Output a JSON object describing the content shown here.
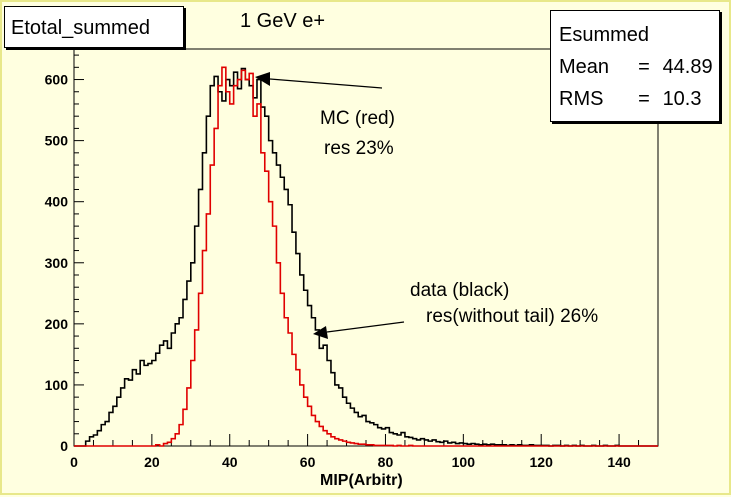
{
  "title_box": "Etotal_summed",
  "subtitle": "1 GeV e+",
  "stats": {
    "name": "Esummed",
    "rows": [
      {
        "key": "Mean",
        "eq": "=",
        "value": "44.89"
      },
      {
        "key": "RMS",
        "eq": "=",
        "value": "10.3"
      }
    ]
  },
  "annotations": {
    "mc_line1": "MC (red)",
    "mc_line2": "res 23%",
    "data_line1": "data (black)",
    "data_line2": "res(without tail) 26%"
  },
  "colors": {
    "background": "#ffffe0",
    "mc": "#e00000",
    "data": "#000000"
  },
  "chart_data": {
    "type": "histogram",
    "title": "",
    "xlabel": "MIP(Arbitr)",
    "ylabel": "",
    "xlim": [
      0,
      150
    ],
    "ylim": [
      0,
      650
    ],
    "xticks": [
      0,
      20,
      40,
      60,
      80,
      100,
      120,
      140
    ],
    "yticks": [
      0,
      100,
      200,
      300,
      400,
      500,
      600
    ],
    "grid": false,
    "bin_width": 1,
    "series": [
      {
        "name": "data (black)",
        "x": [
          0,
          1,
          2,
          3,
          4,
          5,
          6,
          7,
          8,
          9,
          10,
          11,
          12,
          13,
          14,
          15,
          16,
          17,
          18,
          19,
          20,
          21,
          22,
          23,
          24,
          25,
          26,
          27,
          28,
          29,
          30,
          31,
          32,
          33,
          34,
          35,
          36,
          37,
          38,
          39,
          40,
          41,
          42,
          43,
          44,
          45,
          46,
          47,
          48,
          49,
          50,
          51,
          52,
          53,
          54,
          55,
          56,
          57,
          58,
          59,
          60,
          61,
          62,
          63,
          64,
          65,
          66,
          67,
          68,
          69,
          70,
          71,
          72,
          73,
          74,
          75,
          76,
          77,
          78,
          79,
          80,
          81,
          82,
          83,
          84,
          85,
          86,
          87,
          88,
          89,
          90,
          91,
          92,
          93,
          94,
          95,
          96,
          97,
          98,
          99,
          100,
          101,
          102,
          103,
          104,
          105,
          106,
          107,
          108,
          109,
          110,
          111,
          112,
          113,
          114,
          115,
          116,
          117,
          118,
          119,
          120,
          121,
          122,
          123,
          124,
          125,
          126,
          127,
          128,
          129,
          130,
          131,
          132,
          133,
          134,
          135,
          136,
          137,
          138,
          139,
          140,
          141,
          142,
          143,
          144,
          145,
          146,
          147,
          148,
          149
        ],
        "values": [
          0,
          0,
          0,
          8,
          15,
          18,
          25,
          35,
          40,
          55,
          65,
          80,
          95,
          110,
          108,
          125,
          118,
          140,
          132,
          135,
          140,
          152,
          165,
          172,
          160,
          185,
          200,
          210,
          240,
          270,
          300,
          360,
          420,
          480,
          540,
          590,
          605,
          580,
          565,
          600,
          590,
          612,
          585,
          618,
          600,
          590,
          570,
          600,
          555,
          540,
          500,
          480,
          460,
          440,
          420,
          395,
          350,
          315,
          280,
          255,
          230,
          210,
          190,
          160,
          165,
          140,
          120,
          100,
          95,
          80,
          70,
          62,
          55,
          48,
          50,
          40,
          38,
          35,
          30,
          28,
          30,
          22,
          20,
          18,
          22,
          15,
          14,
          12,
          10,
          12,
          10,
          8,
          10,
          7,
          6,
          8,
          5,
          6,
          4,
          5,
          4,
          3,
          4,
          3,
          2,
          3,
          2,
          3,
          2,
          2,
          2,
          1,
          2,
          1,
          2,
          1,
          1,
          2,
          1,
          1,
          1,
          1,
          0,
          1,
          1,
          0,
          1,
          0,
          1,
          0,
          1,
          0,
          0,
          1,
          0,
          0,
          1,
          0,
          0,
          1,
          0,
          0,
          0,
          0,
          0,
          0,
          0,
          0,
          0,
          0
        ],
        "color": "#000000"
      },
      {
        "name": "MC (red)",
        "x": [
          0,
          1,
          2,
          3,
          4,
          5,
          6,
          7,
          8,
          9,
          10,
          11,
          12,
          13,
          14,
          15,
          16,
          17,
          18,
          19,
          20,
          21,
          22,
          23,
          24,
          25,
          26,
          27,
          28,
          29,
          30,
          31,
          32,
          33,
          34,
          35,
          36,
          37,
          38,
          39,
          40,
          41,
          42,
          43,
          44,
          45,
          46,
          47,
          48,
          49,
          50,
          51,
          52,
          53,
          54,
          55,
          56,
          57,
          58,
          59,
          60,
          61,
          62,
          63,
          64,
          65,
          66,
          67,
          68,
          69,
          70,
          71,
          72,
          73,
          74,
          75,
          76,
          77,
          78,
          79,
          80,
          81,
          82,
          83,
          84,
          85,
          86,
          87,
          88,
          89,
          90,
          91,
          92,
          93,
          94,
          95,
          96,
          97,
          98,
          99,
          100,
          101,
          102,
          103,
          104,
          105,
          106,
          107,
          108,
          109,
          110,
          111,
          112,
          113,
          114,
          115,
          116,
          117,
          118,
          119,
          120,
          121,
          122,
          123,
          124,
          125,
          126,
          127,
          128,
          129,
          130,
          131,
          132,
          133,
          134,
          135,
          136,
          137,
          138,
          139,
          140,
          141,
          142,
          143,
          144,
          145,
          146,
          147,
          148,
          149
        ],
        "values": [
          0,
          0,
          0,
          0,
          0,
          0,
          0,
          0,
          0,
          0,
          0,
          0,
          0,
          0,
          0,
          0,
          0,
          0,
          0,
          0,
          0,
          2,
          0,
          4,
          6,
          12,
          20,
          35,
          60,
          95,
          140,
          190,
          250,
          320,
          380,
          460,
          520,
          590,
          620,
          580,
          560,
          590,
          600,
          615,
          600,
          610,
          540,
          560,
          480,
          450,
          400,
          360,
          300,
          250,
          210,
          185,
          150,
          125,
          100,
          80,
          65,
          50,
          40,
          32,
          25,
          20,
          15,
          12,
          10,
          8,
          6,
          5,
          4,
          3,
          3,
          2,
          2,
          1,
          1,
          1,
          1,
          1,
          0,
          1,
          0,
          0,
          1,
          0,
          0,
          0,
          0,
          0,
          0,
          0,
          0,
          0,
          0,
          0,
          0,
          0,
          0,
          0,
          0,
          0,
          0,
          0,
          0,
          0,
          0,
          0,
          0,
          0,
          0,
          0,
          0,
          0,
          0,
          0,
          0,
          0,
          0,
          0,
          0,
          0,
          0,
          0,
          0,
          0,
          0,
          0,
          0,
          0,
          0,
          0,
          0,
          0,
          0,
          0,
          0,
          0,
          0,
          0,
          0,
          0,
          0,
          0,
          0,
          0,
          0,
          0
        ],
        "color": "#e00000"
      }
    ]
  }
}
